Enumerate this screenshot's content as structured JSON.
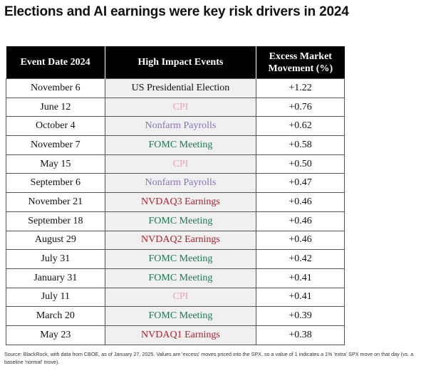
{
  "header": {
    "title": "Elections and AI earnings were key risk drivers in 2024"
  },
  "table": {
    "columns": [
      "Event Date 2024",
      "High Impact Events",
      "Excess Market Movement (%)"
    ],
    "rows": [
      {
        "date": "November 6",
        "event": "US Presidential Election",
        "move": "+1.22",
        "color": "#111111"
      },
      {
        "date": "June 12",
        "event": "CPI",
        "move": "+0.76",
        "color": "#eaa3b4"
      },
      {
        "date": "October 4",
        "event": "Nonfarm Payrolls",
        "move": "+0.62",
        "color": "#8c72b8"
      },
      {
        "date": "November 7",
        "event": "FOMC Meeting",
        "move": "+0.58",
        "color": "#1b7a52"
      },
      {
        "date": "May 15",
        "event": "CPI",
        "move": "+0.50",
        "color": "#eaa3b4"
      },
      {
        "date": "September 6",
        "event": "Nonfarm Payrolls",
        "move": "+0.47",
        "color": "#8c72b8"
      },
      {
        "date": "November 21",
        "event": "NVDAQ3 Earnings",
        "move": "+0.46",
        "color": "#b3202e"
      },
      {
        "date": "September 18",
        "event": "FOMC Meeting",
        "move": "+0.46",
        "color": "#1b7a52"
      },
      {
        "date": "August 29",
        "event": "NVDAQ2 Earnings",
        "move": "+0.46",
        "color": "#b3202e"
      },
      {
        "date": "July 31",
        "event": "FOMC Meeting",
        "move": "+0.42",
        "color": "#1b7a52"
      },
      {
        "date": "January 31",
        "event": "FOMC Meeting",
        "move": "+0.41",
        "color": "#1b7a52"
      },
      {
        "date": "July 11",
        "event": "CPI",
        "move": "+0.41",
        "color": "#eaa3b4"
      },
      {
        "date": "March 20",
        "event": "FOMC Meeting",
        "move": "+0.39",
        "color": "#1b7a52"
      },
      {
        "date": "May 23",
        "event": "NVDAQ1 Earnings",
        "move": "+0.38",
        "color": "#b3202e"
      }
    ]
  },
  "footer": {
    "source": "Source: BlackRock, with data from CBOE, as of January 27, 2025. Values are 'excess' moves priced into the SPX, so a value of 1 indicates a 1% 'extra' SPX move on that day (vs. a baseline 'normal' move)."
  }
}
